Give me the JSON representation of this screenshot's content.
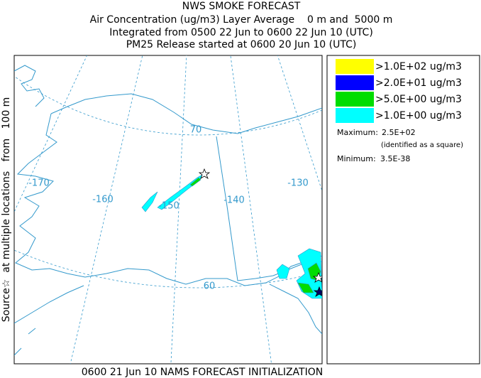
{
  "header": {
    "title": "NWS SMOKE FORECAST",
    "lines": [
      "Air Concentration (ug/m3) Layer Average    0 m and  5000 m",
      "Integrated from 0500 22 Jun to 0600 22 Jun 10 (UTC)",
      "PM25 Release started at 0600 20 Jun 10 (UTC)"
    ]
  },
  "side_label": "Source☆  at multiple locations   from   100 m",
  "legend": {
    "entries": [
      {
        "label": ">1.0E+02 ug/m3",
        "color": "#ffff00"
      },
      {
        "label": ">2.0E+01 ug/m3",
        "color": "#0000ff"
      },
      {
        "label": ">5.0E+00 ug/m3",
        "color": "#00dd00"
      },
      {
        "label": ">1.0E+00 ug/m3",
        "color": "#00ffff"
      }
    ]
  },
  "stats": {
    "maximum_label": "Maximum:",
    "maximum": "2.5E+02",
    "maximum_note": "(identified as a square)",
    "minimum_label": "Minimum:",
    "minimum": "3.5E-38"
  },
  "map": {
    "labels": [
      "70",
      "-170",
      "-160",
      "-150",
      "-140",
      "-130",
      "60"
    ]
  },
  "footer": "0600 21 Jun 10 NAMS FORECAST INITIALIZATION"
}
